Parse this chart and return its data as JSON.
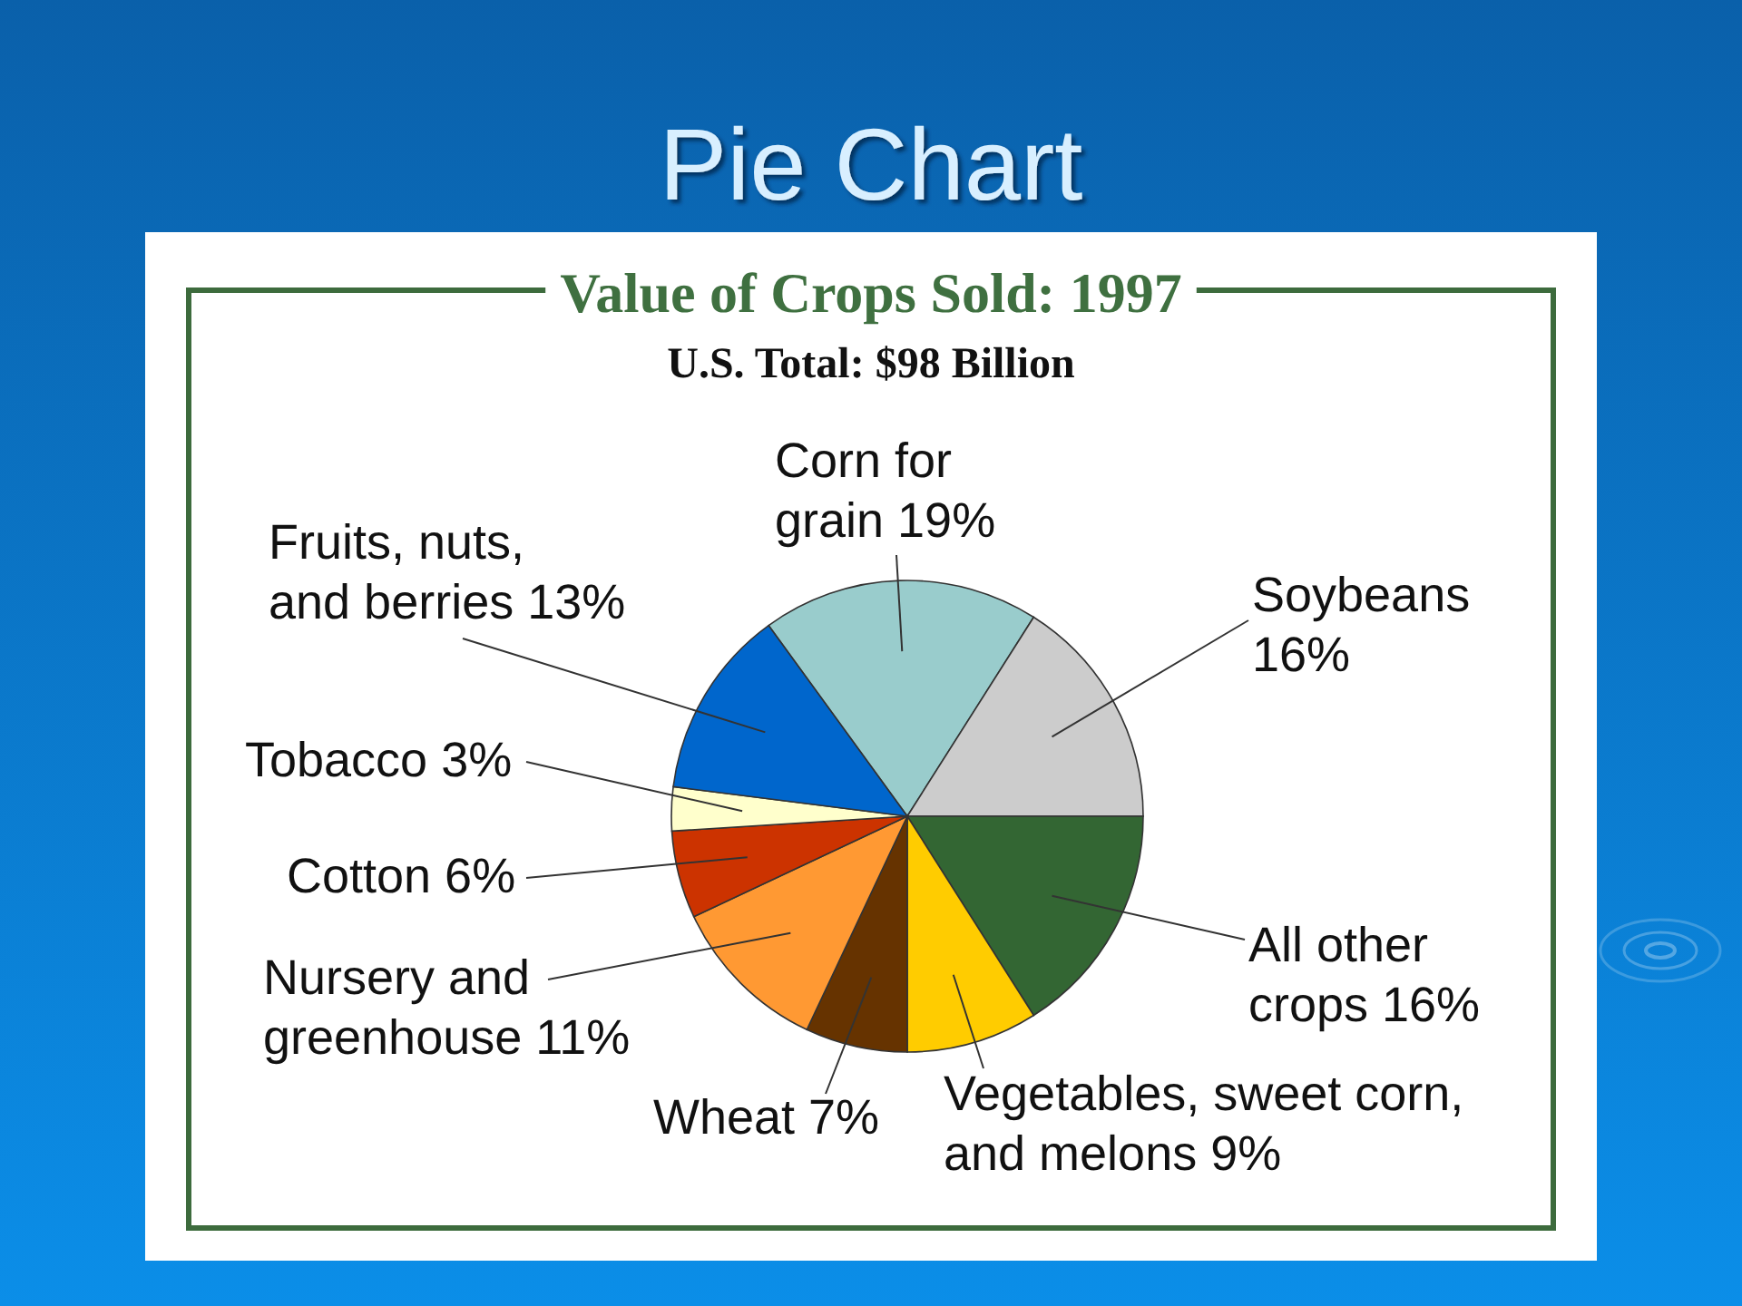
{
  "chart_data": {
    "type": "pie",
    "title": "Value of Crops Sold: 1997",
    "subtitle": "U.S. Total: $98 Billion",
    "annotations": [
      "Pie Chart"
    ],
    "categories": [
      "Corn for grain",
      "Soybeans",
      "All other crops",
      "Vegetables, sweet corn, and melons",
      "Wheat",
      "Nursery and greenhouse",
      "Cotton",
      "Tobacco",
      "Fruits, nuts, and berries"
    ],
    "values": [
      19,
      16,
      16,
      9,
      7,
      11,
      6,
      3,
      13
    ],
    "value_labels": [
      "19%",
      "16%",
      "16%",
      "9%",
      "7%",
      "11%",
      "6%",
      "3%",
      "13%"
    ],
    "colors": [
      "#99cccc",
      "#cccccc",
      "#336633",
      "#ffcc00",
      "#663300",
      "#ff9933",
      "#cc3300",
      "#ffffcc",
      "#0066cc"
    ]
  }
}
